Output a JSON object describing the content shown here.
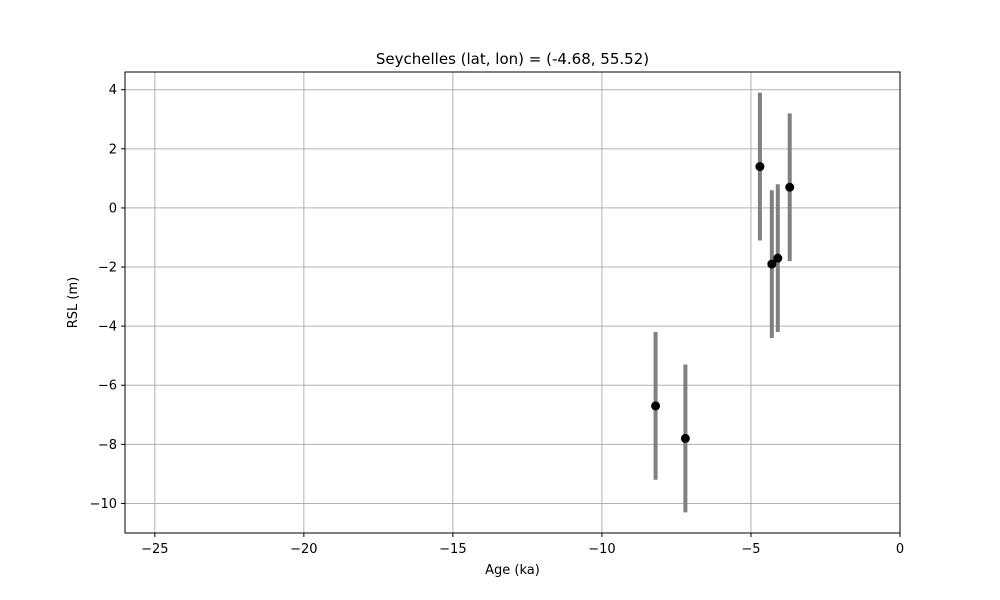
{
  "chart_data": {
    "type": "scatter",
    "title": "Seychelles (lat, lon) = (-4.68, 55.52)",
    "xlabel": "Age (ka)",
    "ylabel": "RSL (m)",
    "xlim": [
      -26,
      0
    ],
    "ylim": [
      -11,
      4.6
    ],
    "xticks": [
      -25,
      -20,
      -15,
      -10,
      -5,
      0
    ],
    "xtick_labels": [
      "−25",
      "−20",
      "−15",
      "−10",
      "−5",
      "0"
    ],
    "yticks": [
      -10,
      -8,
      -6,
      -4,
      -2,
      0,
      2,
      4
    ],
    "ytick_labels": [
      "−10",
      "−8",
      "−6",
      "−4",
      "−2",
      "0",
      "2",
      "4"
    ],
    "grid": true,
    "colors": {
      "point": "#000000",
      "errorbar": "#808080",
      "grid": "#b0b0b0"
    },
    "points": [
      {
        "x": -8.2,
        "y": -6.7,
        "err": 2.5
      },
      {
        "x": -7.2,
        "y": -7.8,
        "err": 2.5
      },
      {
        "x": -4.7,
        "y": 1.4,
        "err": 2.5
      },
      {
        "x": -4.3,
        "y": -1.9,
        "err": 2.5
      },
      {
        "x": -4.1,
        "y": -1.7,
        "err": 2.5
      },
      {
        "x": -3.7,
        "y": 0.7,
        "err": 2.5
      }
    ]
  }
}
